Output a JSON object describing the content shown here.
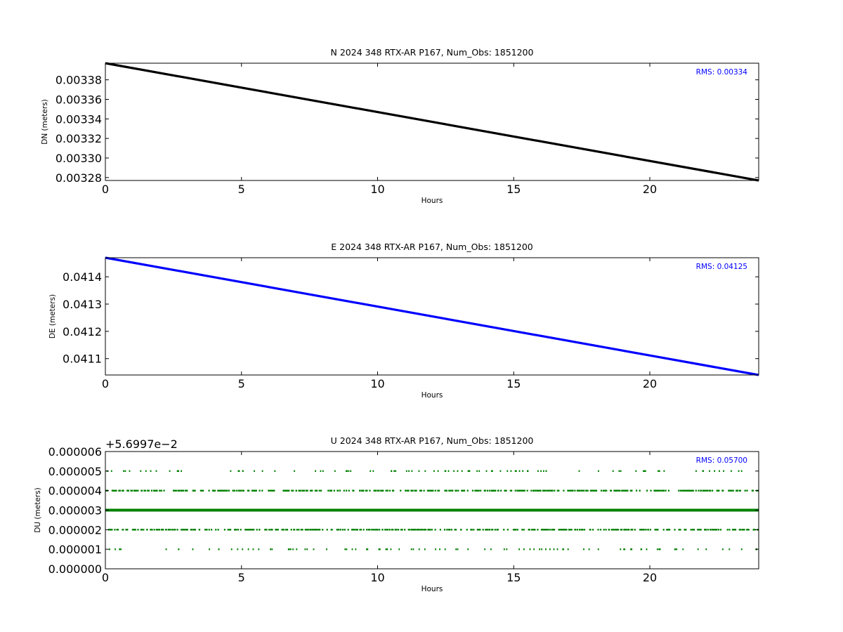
{
  "chart_data": [
    {
      "type": "scatter",
      "title": "N 2024 348 RTX-AR  P167, Num_Obs: 1851200",
      "xlabel": "Hours",
      "ylabel": "DN (meters)",
      "xlim": [
        0,
        24
      ],
      "ylim": [
        0.003277,
        0.003397
      ],
      "xticks": [
        0,
        5,
        10,
        15,
        20
      ],
      "xtick_labels": [
        "0",
        "5",
        "10",
        "15",
        "20"
      ],
      "yticks": [
        0.00328,
        0.0033,
        0.00332,
        0.00334,
        0.00336,
        0.00338
      ],
      "ytick_labels": [
        "0.00328",
        "0.00330",
        "0.00332",
        "0.00334",
        "0.00336",
        "0.00338"
      ],
      "rms_label": "RMS:  0.00334",
      "color": "#000000",
      "series": [
        {
          "x": [
            0,
            24
          ],
          "y": [
            0.003397,
            0.003277
          ]
        }
      ],
      "grid": false
    },
    {
      "type": "scatter",
      "title": "E 2024 348 RTX-AR  P167, Num_Obs: 1851200",
      "xlabel": "Hours",
      "ylabel": "DE (meters)",
      "xlim": [
        0,
        24
      ],
      "ylim": [
        0.04104,
        0.04147
      ],
      "xticks": [
        0,
        5,
        10,
        15,
        20
      ],
      "xtick_labels": [
        "0",
        "5",
        "10",
        "15",
        "20"
      ],
      "yticks": [
        0.0411,
        0.0412,
        0.0413,
        0.0414
      ],
      "ytick_labels": [
        "0.0411",
        "0.0412",
        "0.0413",
        "0.0414"
      ],
      "rms_label": "RMS:  0.04125",
      "color": "#0000ff",
      "series": [
        {
          "x": [
            0,
            24
          ],
          "y": [
            0.04147,
            0.04104
          ]
        }
      ],
      "grid": false
    },
    {
      "type": "scatter",
      "title": "U 2024 348 RTX-AR  P167, Num_Obs: 1851200",
      "xlabel": "Hours",
      "ylabel": "DU (meters)",
      "xlim": [
        0,
        24
      ],
      "ylim": [
        0,
        6e-06
      ],
      "offset_label": "+5.6997e−2",
      "xticks": [
        0,
        5,
        10,
        15,
        20
      ],
      "xtick_labels": [
        "0",
        "5",
        "10",
        "15",
        "20"
      ],
      "yticks": [
        0,
        1e-06,
        2e-06,
        3e-06,
        4e-06,
        5e-06,
        6e-06
      ],
      "ytick_labels": [
        "0.000000",
        "0.000001",
        "0.000002",
        "0.000003",
        "0.000004",
        "0.000005",
        "0.000006"
      ],
      "rms_label": "RMS:  0.05700",
      "color": "#008000",
      "levels": [
        1e-06,
        2e-06,
        3e-06,
        4e-06,
        5e-06
      ],
      "grid": false
    }
  ]
}
